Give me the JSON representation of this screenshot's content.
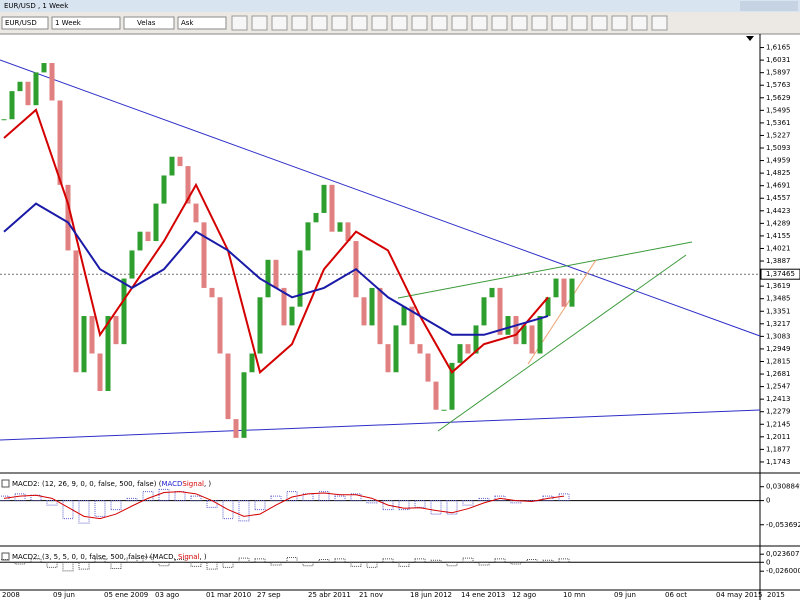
{
  "window_title": "EUR/USD , 1 Week",
  "toolbar": {
    "symbol": "EUR/USD",
    "period": "1 Week",
    "chart_style": "Velas",
    "price_side": "Ask"
  },
  "chart_data": {
    "type": "candlestick",
    "ylim": [
      1.1657,
      1.6299
    ],
    "yticks": [
      {
        "value": 1.6165,
        "label": "1,6165"
      },
      {
        "value": 1.6031,
        "label": "1,6031"
      },
      {
        "value": 1.5897,
        "label": "1,5897"
      },
      {
        "value": 1.5763,
        "label": "1,5763"
      },
      {
        "value": 1.5629,
        "label": "1,5629"
      },
      {
        "value": 1.5495,
        "label": "1,5495"
      },
      {
        "value": 1.5361,
        "label": "1,5361"
      },
      {
        "value": 1.5227,
        "label": "1,5227"
      },
      {
        "value": 1.5093,
        "label": "1,5093"
      },
      {
        "value": 1.4959,
        "label": "1,4959"
      },
      {
        "value": 1.4825,
        "label": "1,4825"
      },
      {
        "value": 1.4691,
        "label": "1,4691"
      },
      {
        "value": 1.4557,
        "label": "1,4557"
      },
      {
        "value": 1.4423,
        "label": "1,4423"
      },
      {
        "value": 1.4289,
        "label": "1,4289"
      },
      {
        "value": 1.4155,
        "label": "1,4155"
      },
      {
        "value": 1.4021,
        "label": "1,4021"
      },
      {
        "value": 1.3887,
        "label": "1,3887"
      },
      {
        "value": 1.3619,
        "label": "1,3619"
      },
      {
        "value": 1.3485,
        "label": "1,3485"
      },
      {
        "value": 1.3351,
        "label": "1,3351"
      },
      {
        "value": 1.3217,
        "label": "1,3217"
      },
      {
        "value": 1.3083,
        "label": "1,3083"
      },
      {
        "value": 1.2949,
        "label": "1,2949"
      },
      {
        "value": 1.2815,
        "label": "1,2815"
      },
      {
        "value": 1.2681,
        "label": "1,2681"
      },
      {
        "value": 1.2547,
        "label": "1,2547"
      },
      {
        "value": 1.2413,
        "label": "1,2413"
      },
      {
        "value": 1.2279,
        "label": "1,2279"
      },
      {
        "value": 1.2145,
        "label": "1,2145"
      },
      {
        "value": 1.2011,
        "label": "1,2011"
      },
      {
        "value": 1.1877,
        "label": "1,1877"
      },
      {
        "value": 1.1743,
        "label": "1,1743"
      }
    ],
    "current_price": {
      "value": 1.37465,
      "label": "1,37465"
    },
    "x_labels": [
      "2008",
      "09 jun",
      "05 ene 2009",
      "03 ago",
      "01 mar 2010",
      "27 sep",
      "25 abr 2011",
      "21 nov",
      "18 jun 2012",
      "14 ene 2013",
      "12 ago",
      "10 mn",
      "09 jun",
      "06 oct",
      "04 may 2015",
      "2015"
    ],
    "series": [
      {
        "name": "close",
        "color_up": "#2e9e2e",
        "color_down": "#e08080",
        "values": [
          1.54,
          1.57,
          1.58,
          1.555,
          1.59,
          1.6,
          1.56,
          1.47,
          1.4,
          1.27,
          1.33,
          1.29,
          1.25,
          1.33,
          1.3,
          1.37,
          1.4,
          1.42,
          1.41,
          1.45,
          1.48,
          1.5,
          1.49,
          1.45,
          1.43,
          1.36,
          1.35,
          1.29,
          1.22,
          1.2,
          1.27,
          1.29,
          1.35,
          1.39,
          1.36,
          1.32,
          1.34,
          1.4,
          1.43,
          1.44,
          1.47,
          1.42,
          1.43,
          1.41,
          1.35,
          1.32,
          1.36,
          1.3,
          1.27,
          1.32,
          1.34,
          1.3,
          1.29,
          1.26,
          1.23,
          1.23,
          1.28,
          1.3,
          1.29,
          1.32,
          1.35,
          1.36,
          1.31,
          1.33,
          1.3,
          1.32,
          1.29,
          1.33,
          1.35,
          1.37,
          1.34,
          1.37
        ]
      },
      {
        "name": "ma_fast",
        "color": "#d40000",
        "values": [
          1.52,
          1.55,
          1.45,
          1.31,
          1.36,
          1.41,
          1.47,
          1.4,
          1.27,
          1.3,
          1.38,
          1.42,
          1.4,
          1.33,
          1.27,
          1.3,
          1.31,
          1.35
        ]
      },
      {
        "name": "ma_slow",
        "color": "#1a1aa8",
        "values": [
          1.42,
          1.45,
          1.43,
          1.38,
          1.36,
          1.38,
          1.42,
          1.4,
          1.37,
          1.35,
          1.36,
          1.38,
          1.35,
          1.33,
          1.31,
          1.31,
          1.32,
          1.33
        ]
      }
    ]
  },
  "indicators": [
    {
      "label_prefix": "MACD2: (12, 26, 9, 0, 0, false, 500, false) (",
      "macd_label": "MACD",
      "signal_label": "Signal",
      "label_suffix": ", )",
      "ylim": [
        -0.0987,
        0.0569
      ],
      "yticks": [
        {
          "value": 0.0308849,
          "label": "0,0308849"
        },
        0,
        {
          "value": -0.0536922,
          "label": "-0,0536922"
        }
      ],
      "histogram": [
        0.01,
        0.015,
        0.012,
        -0.01,
        -0.04,
        -0.05,
        -0.035,
        -0.02,
        0.005,
        0.02,
        0.025,
        0.02,
        0.01,
        -0.015,
        -0.04,
        -0.045,
        -0.02,
        0.01,
        0.02,
        0.015,
        0.02,
        0.01,
        0.015,
        -0.005,
        -0.02,
        -0.02,
        -0.015,
        -0.03,
        -0.03,
        -0.01,
        0.005,
        0.01,
        -0.005,
        0.0,
        0.01,
        0.015
      ],
      "signal": [
        0.005,
        0.01,
        0.012,
        0.005,
        -0.015,
        -0.035,
        -0.04,
        -0.03,
        -0.012,
        0.005,
        0.018,
        0.02,
        0.015,
        0.0,
        -0.02,
        -0.035,
        -0.03,
        -0.01,
        0.008,
        0.015,
        0.017,
        0.013,
        0.013,
        0.005,
        -0.01,
        -0.017,
        -0.016,
        -0.022,
        -0.027,
        -0.018,
        -0.005,
        0.005,
        0.0,
        -0.002,
        0.005,
        0.01
      ]
    },
    {
      "label_prefix": "MACD2: (3, 5, 5, 0, 0, false, 500, false) (MACD, ",
      "macd_label": "MACD",
      "signal_label": "Signal",
      "label_suffix": ", )",
      "ylim": [
        -0.078,
        0.0417
      ],
      "yticks": [
        {
          "value": 0.0236077,
          "label": "0,0236077"
        },
        0,
        {
          "value": -0.0260002,
          "label": "-0,0260002"
        }
      ],
      "histogram": [
        0.008,
        -0.005,
        0.01,
        -0.015,
        -0.025,
        -0.02,
        0.01,
        -0.018,
        0.012,
        0.015,
        -0.01,
        0.008,
        -0.012,
        -0.02,
        -0.015,
        0.012,
        0.01,
        -0.008,
        0.014,
        -0.01,
        0.008,
        0.01,
        -0.012,
        -0.015,
        0.01,
        -0.012,
        0.01,
        0.006,
        -0.01,
        0.012,
        -0.008,
        0.01,
        -0.005,
        0.008,
        0.006,
        0.01
      ],
      "signal": []
    }
  ]
}
